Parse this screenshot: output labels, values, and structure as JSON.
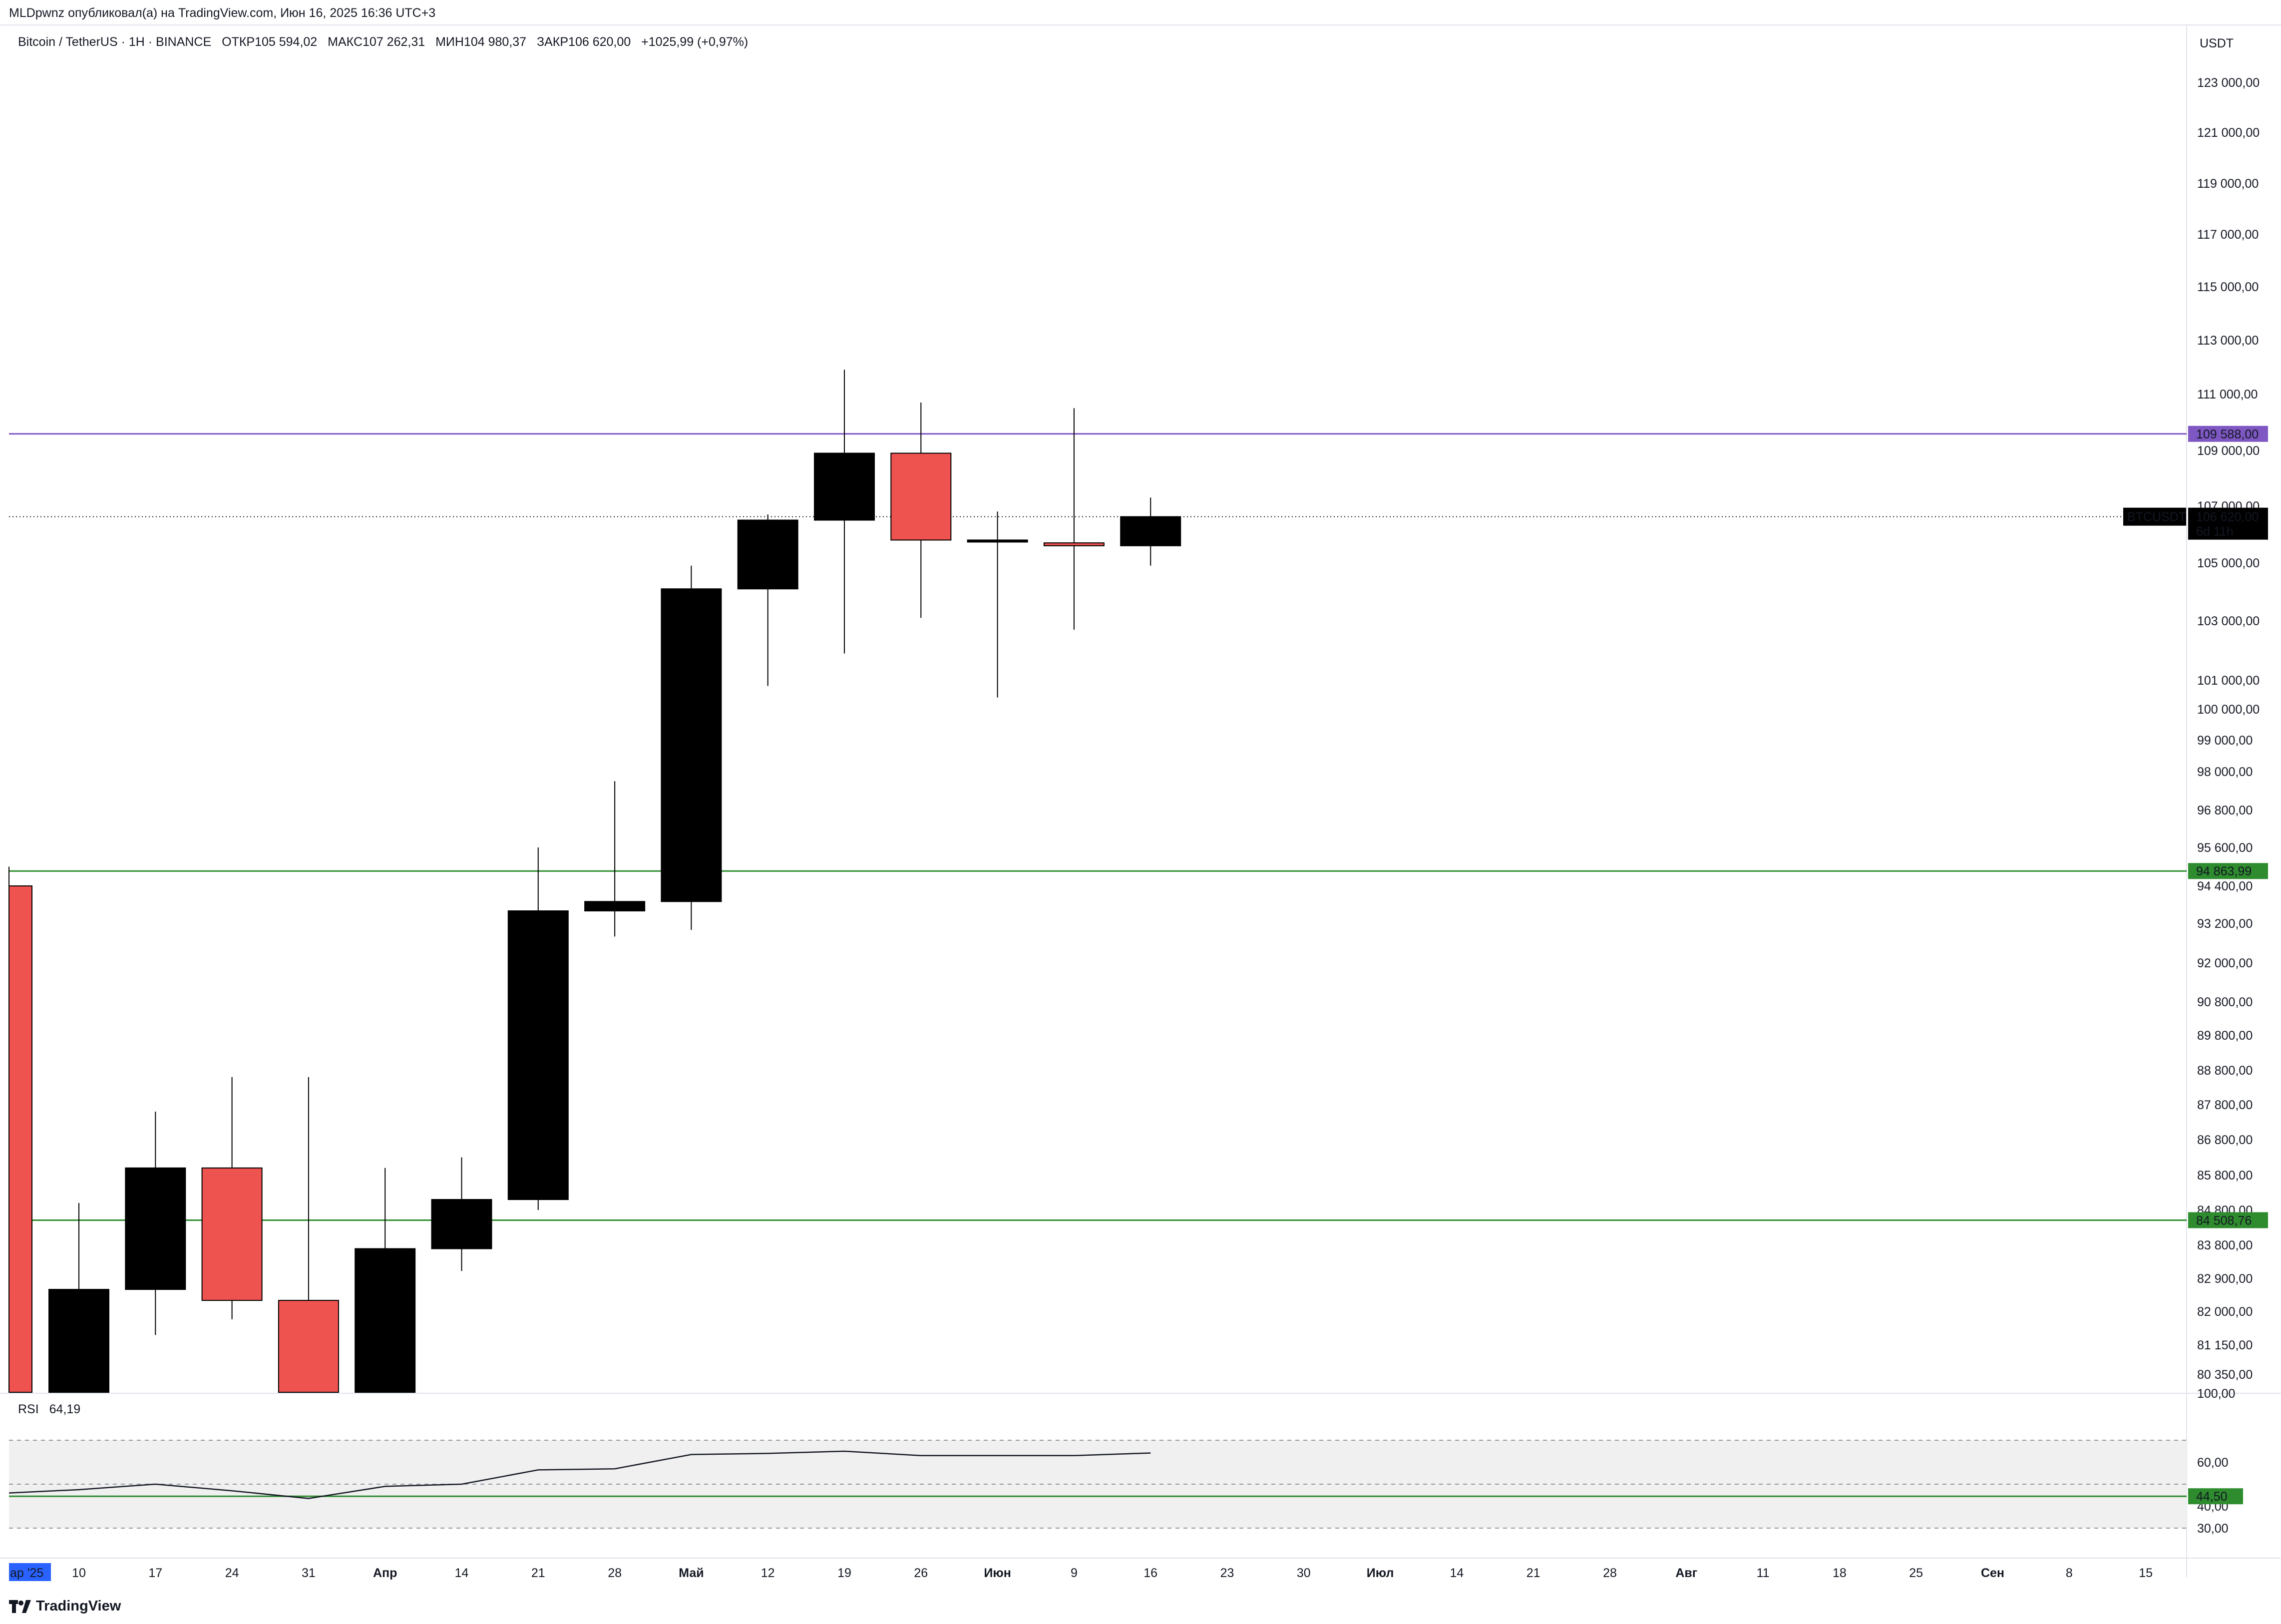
{
  "header": {
    "published_by": "MLDpwnz опубликовал(а) на TradingView.com, Июн 16, 2025 16:36 UTC+3"
  },
  "legend": {
    "symbol": "Bitcoin / TetherUS · 1H · BINANCE",
    "open_label": "ОТКР",
    "open_value": "105 594,02",
    "high_label": "МАКС",
    "high_value": "107 262,31",
    "low_label": "МИН",
    "low_value": "104 980,37",
    "close_label": "ЗАКР",
    "close_value": "106 620,00",
    "change": "+1025,99 (+0,97%)"
  },
  "price_axis": {
    "currency": "USDT",
    "ticks": [
      "123 000,00",
      "121 000,00",
      "119 000,00",
      "117 000,00",
      "115 000,00",
      "113 000,00",
      "111 000,00",
      "109 000,00",
      "107 000,00",
      "105 000,00",
      "103 000,00",
      "101 000,00",
      "100 000,00",
      "99 000,00",
      "98 000,00",
      "96 800,00",
      "95 600,00",
      "94 400,00",
      "93 200,00",
      "92 000,00",
      "90 800,00",
      "89 800,00",
      "88 800,00",
      "87 800,00",
      "86 800,00",
      "85 800,00",
      "84 800,00",
      "83 800,00",
      "82 900,00",
      "82 000,00",
      "81 150,00",
      "80 350,00"
    ]
  },
  "horizontal_levels": [
    {
      "label": "109 588,00",
      "price": 109588.0,
      "color": "#7e57c2"
    },
    {
      "label": "94 863,99",
      "price": 94863.99,
      "color": "#2e8b2e"
    },
    {
      "label": "84 508,76",
      "price": 84508.76,
      "color": "#2e8b2e"
    }
  ],
  "current_price": {
    "symbol": "BTCUSDT",
    "price": "106 620,00",
    "countdown": "6d 11h",
    "value": 106620.0
  },
  "rsi": {
    "label": "RSI",
    "value": "64,19",
    "axis_ticks": [
      "100,00",
      "60,00",
      "40,00",
      "30,00"
    ],
    "level_label": "44,50",
    "level_value": 44.5
  },
  "time_axis": {
    "labels": [
      "ар '25",
      "10",
      "17",
      "24",
      "31",
      "Апр",
      "14",
      "21",
      "28",
      "Май",
      "12",
      "19",
      "26",
      "Июн",
      "9",
      "16",
      "23",
      "30",
      "Июл",
      "14",
      "21",
      "28",
      "Авг",
      "11",
      "18",
      "25",
      "Сен",
      "8",
      "15"
    ]
  },
  "branding": {
    "logo_text": "TradingView"
  },
  "colors": {
    "up": "#000000",
    "down": "#ef5350",
    "rsi_band": "#f0f0f0",
    "date_highlight": "#2962ff"
  },
  "chart_data": {
    "type": "candlestick",
    "x": [
      "03",
      "10",
      "17",
      "24",
      "31",
      "Апр 07",
      "14",
      "21",
      "28",
      "Май 05",
      "12",
      "19",
      "26",
      "Июн 02",
      "9",
      "16"
    ],
    "open": [
      94400,
      78600,
      82600,
      86000,
      82300,
      79700,
      83700,
      85100,
      93600,
      93900,
      104100,
      106500,
      108900,
      105800,
      105700,
      105600
    ],
    "high": [
      95000,
      85000,
      87600,
      88600,
      88600,
      86000,
      86300,
      95600,
      97700,
      104900,
      106700,
      111900,
      110700,
      106800,
      110500,
      107300
    ],
    "low": [
      78300,
      76600,
      81400,
      81800,
      74600,
      74400,
      83100,
      84800,
      92800,
      93000,
      100800,
      101900,
      103100,
      100400,
      102700,
      104900
    ],
    "close": [
      78600,
      82600,
      86000,
      82300,
      79700,
      83700,
      85100,
      93600,
      93900,
      104100,
      106500,
      108900,
      105800,
      105800,
      105600,
      106620
    ],
    "rsi": [
      46.0,
      47.5,
      50.0,
      47.0,
      43.5,
      49.0,
      50.0,
      56.5,
      57.0,
      63.5,
      64.0,
      65.0,
      63.0,
      63.0,
      63.0,
      64.19
    ]
  }
}
